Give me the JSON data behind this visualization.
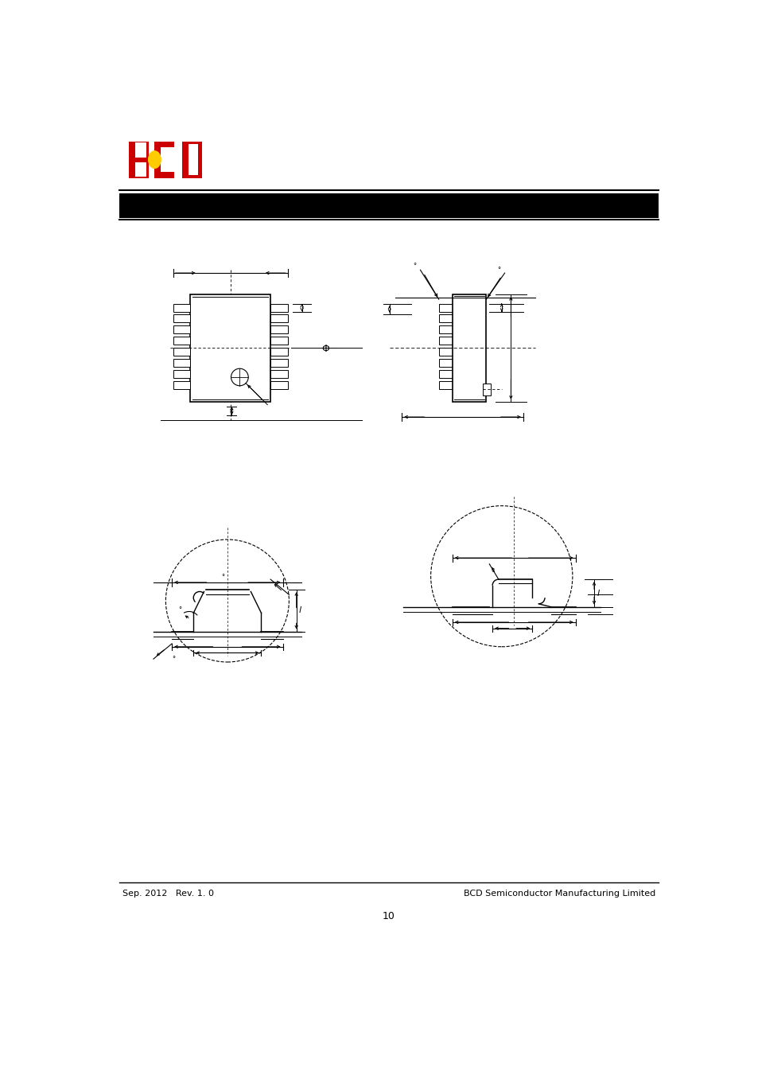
{
  "page_bg": "#ffffff",
  "header_bg": "#000000",
  "footer_left": "Sep. 2012   Rev. 1. 0",
  "footer_right": "BCD Semiconductor Manufacturing Limited",
  "page_number": "10",
  "logo_b_color": "#cc0000",
  "logo_c_color": "#cc0000",
  "logo_d_color": "#cc0000",
  "logo_circle_color": "#ffcc00",
  "line_color": "#000000",
  "dim_label_phi": "Φ",
  "dim_label_l": "l"
}
